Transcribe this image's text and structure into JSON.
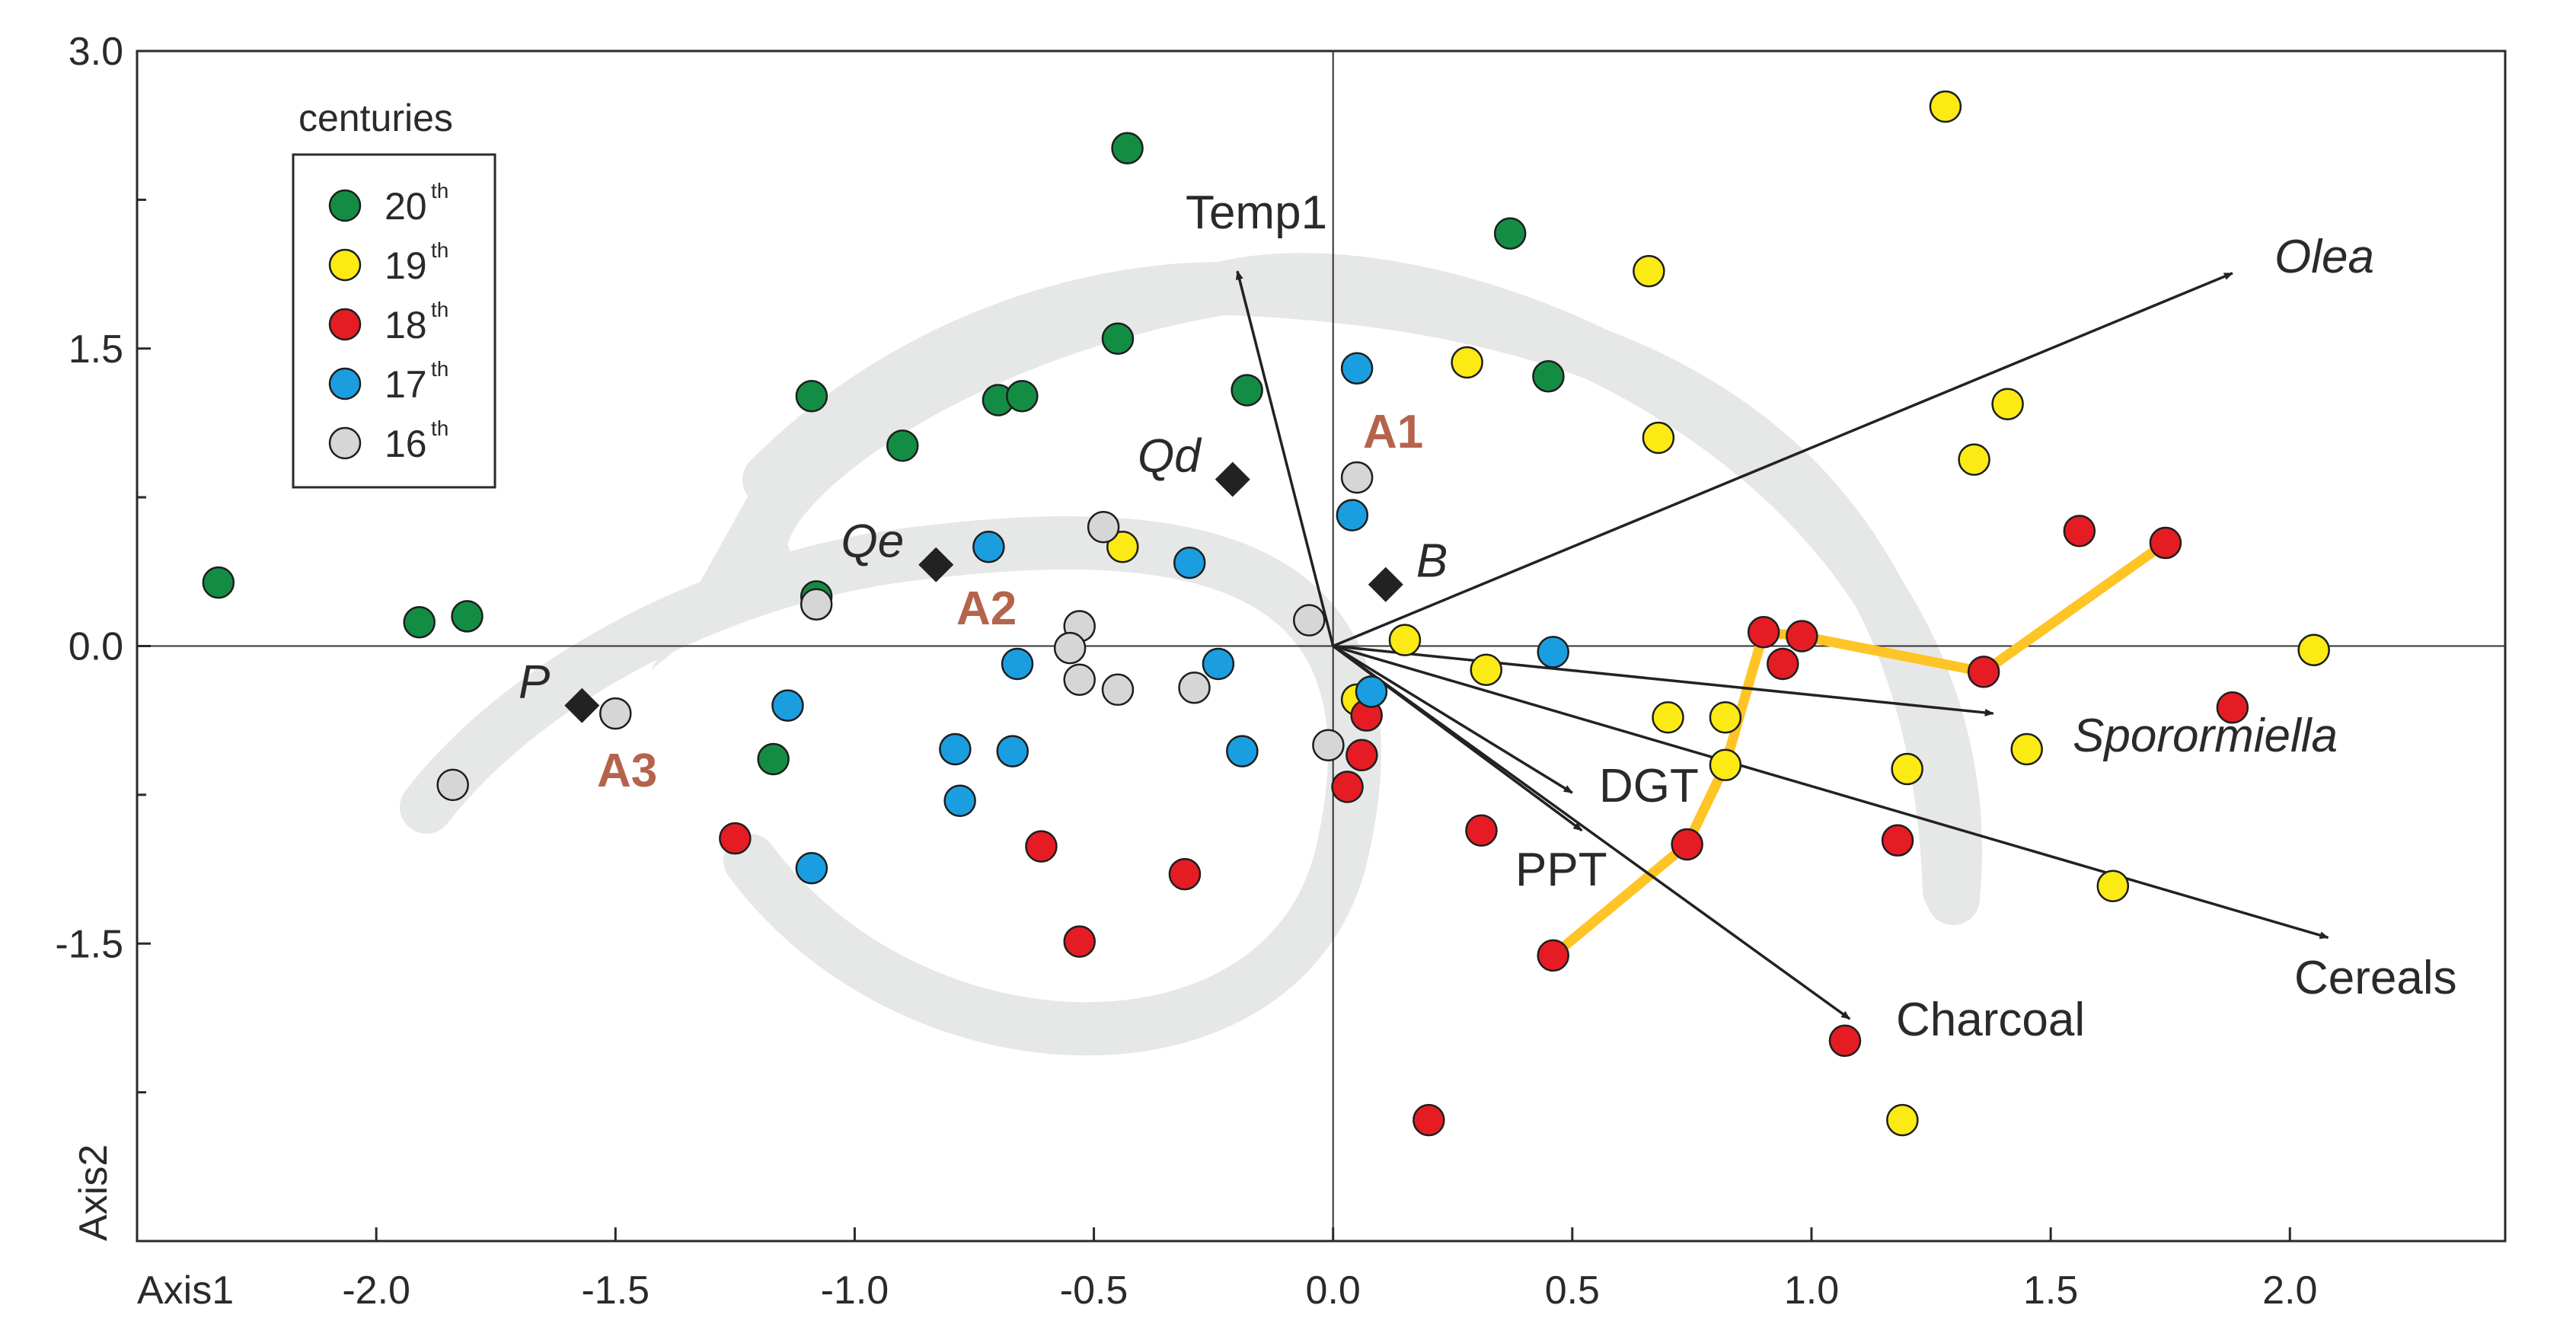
{
  "chart_data": {
    "type": "scatter",
    "title": "",
    "xlabel": "Axis1",
    "ylabel": "Axis2",
    "xlim": [
      -2.5,
      2.45
    ],
    "ylim": [
      -3.0,
      3.0
    ],
    "x_ticks": [
      {
        "value": -2.0,
        "label": "-2.0"
      },
      {
        "value": -1.5,
        "label": "-1.5"
      },
      {
        "value": -1.0,
        "label": "-1.0"
      },
      {
        "value": -0.5,
        "label": "-0.5"
      },
      {
        "value": 0.0,
        "label": "0.0"
      },
      {
        "value": 0.5,
        "label": "0.5"
      },
      {
        "value": 1.0,
        "label": "1.0"
      },
      {
        "value": 1.5,
        "label": "1.5"
      },
      {
        "value": 2.0,
        "label": "2.0"
      }
    ],
    "y_ticks": [
      {
        "value": 3.0,
        "label": "3.0"
      },
      {
        "value": 1.5,
        "label": "1.5"
      },
      {
        "value": 0.0,
        "label": "0.0"
      },
      {
        "value": -1.5,
        "label": "-1.5"
      }
    ],
    "y_minor_ticks": [
      2.25,
      0.75,
      -0.75,
      -2.25
    ],
    "legend": {
      "title": "centuries",
      "placement": "top-left",
      "entries": [
        {
          "label": "20",
          "sup": "th",
          "color": "#138d43"
        },
        {
          "label": "19",
          "sup": "th",
          "color": "#fbea14"
        },
        {
          "label": "18",
          "sup": "th",
          "color": "#e51c23"
        },
        {
          "label": "17",
          "sup": "th",
          "color": "#1a9ee0"
        },
        {
          "label": "16",
          "sup": "th",
          "color": "#d6d6d6"
        }
      ]
    },
    "series": [
      {
        "name": "20th",
        "color": "#138d43",
        "points": [
          [
            -2.33,
            0.32
          ],
          [
            -1.91,
            0.12
          ],
          [
            -1.81,
            0.15
          ],
          [
            -1.09,
            1.26
          ],
          [
            -1.08,
            0.25
          ],
          [
            -1.17,
            -0.57
          ],
          [
            -0.9,
            1.01
          ],
          [
            -0.7,
            1.24
          ],
          [
            -0.65,
            1.26
          ],
          [
            -0.45,
            1.55
          ],
          [
            -0.43,
            2.51
          ],
          [
            -0.18,
            1.29
          ],
          [
            0.37,
            2.08
          ],
          [
            0.45,
            1.36
          ]
        ]
      },
      {
        "name": "19th",
        "color": "#fbea14",
        "points": [
          [
            1.28,
            2.72
          ],
          [
            0.66,
            1.89
          ],
          [
            0.28,
            1.43
          ],
          [
            0.68,
            1.05
          ],
          [
            1.41,
            1.22
          ],
          [
            1.34,
            0.94
          ],
          [
            -0.44,
            0.5
          ],
          [
            0.15,
            0.03
          ],
          [
            0.32,
            -0.12
          ],
          [
            0.7,
            -0.36
          ],
          [
            0.82,
            -0.36
          ],
          [
            0.82,
            -0.6
          ],
          [
            1.45,
            -0.52
          ],
          [
            1.2,
            -0.62
          ],
          [
            1.63,
            -1.21
          ],
          [
            1.19,
            -2.39
          ],
          [
            2.05,
            -0.02
          ],
          [
            0.05,
            -0.27
          ]
        ]
      },
      {
        "name": "18th",
        "color": "#e51c23",
        "points": [
          [
            1.74,
            0.52
          ],
          [
            1.56,
            0.58
          ],
          [
            0.9,
            0.07
          ],
          [
            0.98,
            0.05
          ],
          [
            0.94,
            -0.09
          ],
          [
            1.36,
            -0.13
          ],
          [
            1.88,
            -0.31
          ],
          [
            1.18,
            -0.98
          ],
          [
            0.74,
            -1.0
          ],
          [
            0.46,
            -1.56
          ],
          [
            1.07,
            -1.99
          ],
          [
            0.2,
            -2.39
          ],
          [
            0.31,
            -0.93
          ],
          [
            0.07,
            -0.35
          ],
          [
            0.06,
            -0.55
          ],
          [
            0.03,
            -0.71
          ],
          [
            -0.61,
            -1.01
          ],
          [
            -0.31,
            -1.15
          ],
          [
            -0.53,
            -1.49
          ],
          [
            -1.25,
            -0.97
          ]
        ]
      },
      {
        "name": "17th",
        "color": "#1a9ee0",
        "points": [
          [
            0.05,
            1.4
          ],
          [
            0.04,
            0.66
          ],
          [
            -0.3,
            0.42
          ],
          [
            -0.72,
            0.5
          ],
          [
            0.46,
            -0.03
          ],
          [
            0.08,
            -0.23
          ],
          [
            -0.24,
            -0.09
          ],
          [
            -0.66,
            -0.09
          ],
          [
            -1.14,
            -0.3
          ],
          [
            -0.79,
            -0.52
          ],
          [
            -0.67,
            -0.53
          ],
          [
            -0.19,
            -0.53
          ],
          [
            -0.78,
            -0.78
          ],
          [
            -1.09,
            -1.12
          ]
        ]
      },
      {
        "name": "16th",
        "color": "#d6d6d6",
        "points": [
          [
            0.05,
            0.85
          ],
          [
            -0.48,
            0.6
          ],
          [
            -0.05,
            0.13
          ],
          [
            -0.53,
            0.1
          ],
          [
            -0.55,
            -0.01
          ],
          [
            -0.53,
            -0.17
          ],
          [
            -0.45,
            -0.22
          ],
          [
            -0.29,
            -0.21
          ],
          [
            -1.08,
            0.21
          ],
          [
            -1.5,
            -0.34
          ],
          [
            -1.84,
            -0.7
          ],
          [
            -0.01,
            -0.5
          ]
        ]
      }
    ],
    "species": [
      {
        "label": "Qd",
        "x": -0.21,
        "y": 0.84,
        "italic": true,
        "label_side": "left"
      },
      {
        "label": "Qe",
        "x": -0.83,
        "y": 0.41,
        "italic": true,
        "label_side": "left"
      },
      {
        "label": "B",
        "x": 0.11,
        "y": 0.31,
        "italic": true,
        "label_side": "right"
      },
      {
        "label": "P",
        "x": -1.57,
        "y": -0.3,
        "italic": true,
        "label_side": "left"
      }
    ],
    "vectors": [
      {
        "label": "Temp1",
        "x": -0.2,
        "y": 1.89,
        "italic": false
      },
      {
        "label": "Olea",
        "x": 1.88,
        "y": 1.88,
        "italic": true
      },
      {
        "label": "Sporormiella",
        "x": 1.38,
        "y": -0.34,
        "italic": true
      },
      {
        "label": "Cereals",
        "x": 2.08,
        "y": -1.47,
        "italic": false
      },
      {
        "label": "DGT",
        "x": 0.5,
        "y": -0.74,
        "italic": false
      },
      {
        "label": "PPT",
        "x": 0.52,
        "y": -0.93,
        "italic": false
      },
      {
        "label": "Charcoal",
        "x": 1.08,
        "y": -1.88,
        "italic": false
      }
    ],
    "trajectory": {
      "color": "#ffc425",
      "points": [
        [
          0.46,
          -1.56
        ],
        [
          0.74,
          -1.0
        ],
        [
          0.82,
          -0.6
        ],
        [
          0.9,
          0.07
        ],
        [
          0.98,
          0.05
        ],
        [
          1.36,
          -0.13
        ],
        [
          1.74,
          0.52
        ]
      ]
    },
    "zone_labels": [
      "A1",
      "A2",
      "A3"
    ]
  }
}
